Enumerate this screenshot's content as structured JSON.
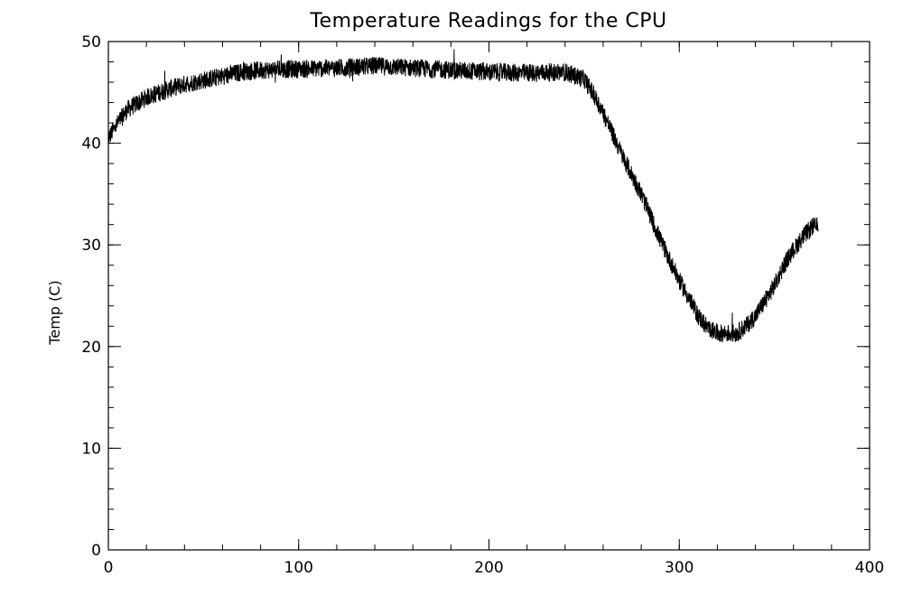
{
  "chart_data": {
    "type": "line",
    "title": "Temperature Readings for the CPU",
    "xlabel": "",
    "ylabel": "Temp (C)",
    "xlim": [
      0,
      400
    ],
    "ylim": [
      0,
      50
    ],
    "x_ticks": [
      0,
      100,
      200,
      300,
      400
    ],
    "x_minor_step": 20,
    "y_ticks": [
      0,
      10,
      20,
      30,
      40,
      50
    ],
    "y_minor_step": 2,
    "grid": false,
    "legend": "none",
    "line_color": "#000000",
    "noise_amplitude": 0.9,
    "series": [
      {
        "x": [
          0,
          5,
          10,
          20,
          30,
          40,
          50,
          60,
          70,
          80,
          100,
          120,
          140,
          160,
          180,
          200,
          220,
          240,
          250,
          255,
          260,
          270,
          280,
          290,
          300,
          310,
          315,
          320,
          330,
          335,
          340,
          345,
          350,
          355,
          360,
          365,
          370,
          373
        ],
        "y": [
          40.5,
          42,
          43.3,
          44.5,
          45.2,
          45.8,
          46.2,
          46.6,
          47.0,
          47.2,
          47.3,
          47.4,
          47.6,
          47.4,
          47.2,
          47.0,
          46.9,
          47.0,
          46.3,
          44.8,
          43.0,
          38.8,
          35.0,
          30.5,
          26.5,
          23.0,
          21.8,
          21.3,
          21.3,
          22.0,
          23.0,
          24.5,
          26.0,
          28.0,
          29.5,
          30.8,
          31.8,
          31.8
        ]
      }
    ]
  }
}
